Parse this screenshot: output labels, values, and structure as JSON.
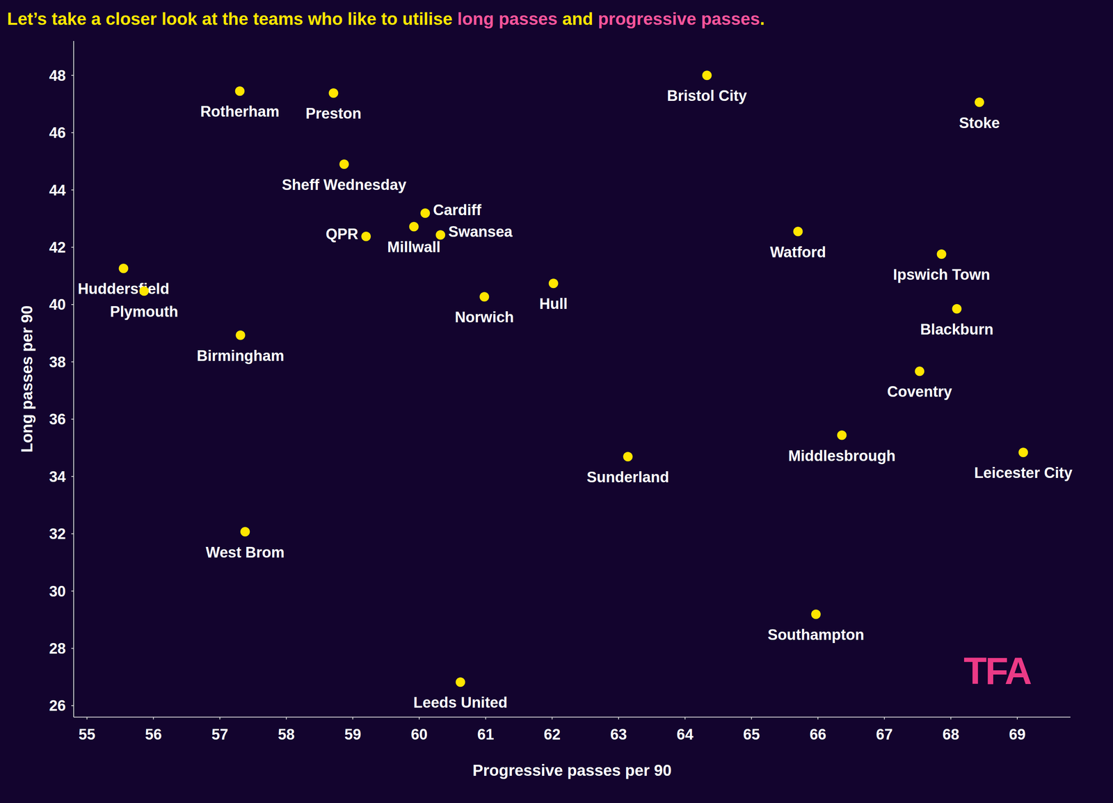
{
  "chart_data": {
    "type": "scatter",
    "title": "Let’s take a closer look at the teams who like to utilise long passes and progressive passes.",
    "title_highlights": [
      "long passes",
      "progressive passes"
    ],
    "x_label": "Progressive passes per 90",
    "y_label": "Long passes per 90",
    "watermark": "TFA",
    "labels": [
      "Rotherham",
      "Preston",
      "Bristol City",
      "Stoke",
      "Sheff Wednesday",
      "Cardiff",
      "QPR",
      "Millwall",
      "Swansea",
      "Watford",
      "Ipswich Town",
      "Huddersfield",
      "Plymouth",
      "Hull",
      "Norwich",
      "Blackburn",
      "Birmingham",
      "Coventry",
      "Middlesbrough",
      "Leicester City",
      "Sunderland",
      "West Brom",
      "Southampton",
      "Leeds United"
    ],
    "x": [
      57.3,
      58.71,
      64.33,
      68.43,
      58.87,
      60.09,
      59.2,
      59.92,
      60.32,
      65.7,
      67.86,
      55.55,
      55.86,
      62.02,
      60.98,
      68.09,
      57.31,
      67.53,
      66.36,
      69.09,
      63.14,
      57.38,
      65.97,
      60.62
    ],
    "y": [
      47.45,
      47.38,
      48.0,
      47.06,
      44.9,
      43.19,
      42.38,
      42.72,
      42.43,
      42.55,
      41.76,
      41.26,
      40.47,
      40.74,
      40.27,
      39.85,
      38.93,
      37.67,
      35.44,
      34.84,
      34.69,
      32.07,
      29.19,
      26.82
    ],
    "color": "#ffe600",
    "marker": "circle",
    "xlim": [
      54.8,
      69.8
    ],
    "ylim": [
      25.6,
      49.2
    ],
    "xticks": [
      55,
      56,
      57,
      58,
      59,
      60,
      61,
      62,
      63,
      64,
      65,
      66,
      67,
      68,
      69
    ],
    "yticks": [
      26,
      28,
      30,
      32,
      34,
      36,
      38,
      40,
      42,
      44,
      46,
      48
    ],
    "grid": false
  }
}
